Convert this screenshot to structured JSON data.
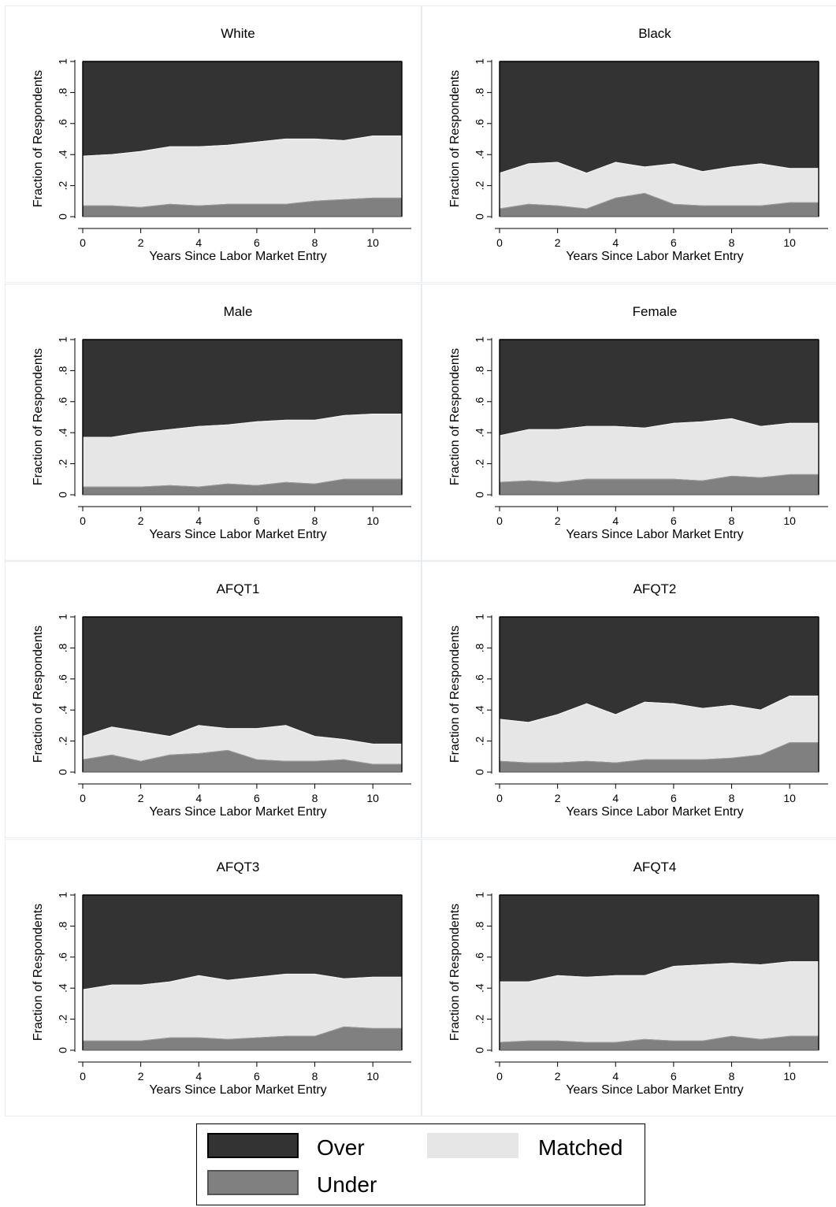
{
  "chart_data": [
    {
      "type": "area",
      "title": "White",
      "xlabel": "Years Since Labor Market Entry",
      "ylabel": "Fraction of Respondents",
      "x": [
        0,
        1,
        2,
        3,
        4,
        5,
        6,
        7,
        8,
        9,
        10,
        11
      ],
      "series": [
        {
          "name": "Under",
          "values": [
            0.07,
            0.07,
            0.06,
            0.08,
            0.07,
            0.08,
            0.08,
            0.08,
            0.1,
            0.11,
            0.12,
            0.12
          ]
        },
        {
          "name": "Matched",
          "values": [
            0.32,
            0.33,
            0.36,
            0.37,
            0.38,
            0.38,
            0.4,
            0.42,
            0.4,
            0.38,
            0.4,
            0.4
          ]
        },
        {
          "name": "Over",
          "values": [
            0.61,
            0.6,
            0.58,
            0.55,
            0.55,
            0.54,
            0.52,
            0.5,
            0.5,
            0.51,
            0.48,
            0.48
          ]
        }
      ]
    },
    {
      "type": "area",
      "title": "Black",
      "xlabel": "Years Since Labor Market Entry",
      "ylabel": "Fraction of Respondents",
      "x": [
        0,
        1,
        2,
        3,
        4,
        5,
        6,
        7,
        8,
        9,
        10,
        11
      ],
      "series": [
        {
          "name": "Under",
          "values": [
            0.05,
            0.08,
            0.07,
            0.05,
            0.12,
            0.15,
            0.08,
            0.07,
            0.07,
            0.07,
            0.09,
            0.09
          ]
        },
        {
          "name": "Matched",
          "values": [
            0.23,
            0.26,
            0.28,
            0.23,
            0.23,
            0.17,
            0.26,
            0.22,
            0.25,
            0.27,
            0.22,
            0.22
          ]
        },
        {
          "name": "Over",
          "values": [
            0.72,
            0.66,
            0.65,
            0.72,
            0.65,
            0.68,
            0.66,
            0.71,
            0.68,
            0.66,
            0.69,
            0.69
          ]
        }
      ]
    },
    {
      "type": "area",
      "title": "Male",
      "xlabel": "Years Since Labor Market Entry",
      "ylabel": "Fraction of Respondents",
      "x": [
        0,
        1,
        2,
        3,
        4,
        5,
        6,
        7,
        8,
        9,
        10,
        11
      ],
      "series": [
        {
          "name": "Under",
          "values": [
            0.05,
            0.05,
            0.05,
            0.06,
            0.05,
            0.07,
            0.06,
            0.08,
            0.07,
            0.1,
            0.1,
            0.1
          ]
        },
        {
          "name": "Matched",
          "values": [
            0.32,
            0.32,
            0.35,
            0.36,
            0.39,
            0.38,
            0.41,
            0.4,
            0.41,
            0.41,
            0.42,
            0.42
          ]
        },
        {
          "name": "Over",
          "values": [
            0.63,
            0.63,
            0.6,
            0.58,
            0.56,
            0.55,
            0.53,
            0.52,
            0.52,
            0.49,
            0.48,
            0.48
          ]
        }
      ]
    },
    {
      "type": "area",
      "title": "Female",
      "xlabel": "Years Since Labor Market Entry",
      "ylabel": "Fraction of Respondents",
      "x": [
        0,
        1,
        2,
        3,
        4,
        5,
        6,
        7,
        8,
        9,
        10,
        11
      ],
      "series": [
        {
          "name": "Under",
          "values": [
            0.08,
            0.09,
            0.08,
            0.1,
            0.1,
            0.1,
            0.1,
            0.09,
            0.12,
            0.11,
            0.13,
            0.13
          ]
        },
        {
          "name": "Matched",
          "values": [
            0.3,
            0.33,
            0.34,
            0.34,
            0.34,
            0.33,
            0.36,
            0.38,
            0.37,
            0.33,
            0.33,
            0.33
          ]
        },
        {
          "name": "Over",
          "values": [
            0.62,
            0.58,
            0.58,
            0.56,
            0.56,
            0.57,
            0.54,
            0.53,
            0.51,
            0.56,
            0.54,
            0.54
          ]
        }
      ]
    },
    {
      "type": "area",
      "title": "AFQT1",
      "xlabel": "Years Since Labor Market Entry",
      "ylabel": "Fraction of Respondents",
      "x": [
        0,
        1,
        2,
        3,
        4,
        5,
        6,
        7,
        8,
        9,
        10,
        11
      ],
      "series": [
        {
          "name": "Under",
          "values": [
            0.08,
            0.11,
            0.07,
            0.11,
            0.12,
            0.14,
            0.08,
            0.07,
            0.07,
            0.08,
            0.05,
            0.05
          ]
        },
        {
          "name": "Matched",
          "values": [
            0.15,
            0.18,
            0.19,
            0.12,
            0.18,
            0.14,
            0.2,
            0.23,
            0.16,
            0.13,
            0.13,
            0.13
          ]
        },
        {
          "name": "Over",
          "values": [
            0.77,
            0.71,
            0.74,
            0.77,
            0.7,
            0.72,
            0.72,
            0.7,
            0.77,
            0.79,
            0.82,
            0.82
          ]
        }
      ]
    },
    {
      "type": "area",
      "title": "AFQT2",
      "xlabel": "Years Since Labor Market Entry",
      "ylabel": "Fraction of Respondents",
      "x": [
        0,
        1,
        2,
        3,
        4,
        5,
        6,
        7,
        8,
        9,
        10,
        11
      ],
      "series": [
        {
          "name": "Under",
          "values": [
            0.07,
            0.06,
            0.06,
            0.07,
            0.06,
            0.08,
            0.08,
            0.08,
            0.09,
            0.11,
            0.19,
            0.19
          ]
        },
        {
          "name": "Matched",
          "values": [
            0.27,
            0.26,
            0.31,
            0.37,
            0.31,
            0.37,
            0.36,
            0.33,
            0.34,
            0.29,
            0.3,
            0.3
          ]
        },
        {
          "name": "Over",
          "values": [
            0.66,
            0.68,
            0.63,
            0.56,
            0.63,
            0.55,
            0.56,
            0.59,
            0.57,
            0.6,
            0.51,
            0.51
          ]
        }
      ]
    },
    {
      "type": "area",
      "title": "AFQT3",
      "xlabel": "Years Since Labor Market Entry",
      "ylabel": "Fraction of Respondents",
      "x": [
        0,
        1,
        2,
        3,
        4,
        5,
        6,
        7,
        8,
        9,
        10,
        11
      ],
      "series": [
        {
          "name": "Under",
          "values": [
            0.06,
            0.06,
            0.06,
            0.08,
            0.08,
            0.07,
            0.08,
            0.09,
            0.09,
            0.15,
            0.14,
            0.14
          ]
        },
        {
          "name": "Matched",
          "values": [
            0.33,
            0.36,
            0.36,
            0.36,
            0.4,
            0.38,
            0.39,
            0.4,
            0.4,
            0.31,
            0.33,
            0.33
          ]
        },
        {
          "name": "Over",
          "values": [
            0.61,
            0.58,
            0.58,
            0.56,
            0.52,
            0.55,
            0.53,
            0.51,
            0.51,
            0.54,
            0.53,
            0.53
          ]
        }
      ]
    },
    {
      "type": "area",
      "title": "AFQT4",
      "xlabel": "Years Since Labor Market Entry",
      "ylabel": "Fraction of Respondents",
      "x": [
        0,
        1,
        2,
        3,
        4,
        5,
        6,
        7,
        8,
        9,
        10,
        11
      ],
      "series": [
        {
          "name": "Under",
          "values": [
            0.05,
            0.06,
            0.06,
            0.05,
            0.05,
            0.07,
            0.06,
            0.06,
            0.09,
            0.07,
            0.09,
            0.09
          ]
        },
        {
          "name": "Matched",
          "values": [
            0.39,
            0.38,
            0.42,
            0.42,
            0.43,
            0.41,
            0.48,
            0.49,
            0.47,
            0.48,
            0.48,
            0.48
          ]
        },
        {
          "name": "Over",
          "values": [
            0.56,
            0.56,
            0.52,
            0.53,
            0.52,
            0.52,
            0.46,
            0.45,
            0.44,
            0.45,
            0.43,
            0.43
          ]
        }
      ]
    }
  ],
  "axis": {
    "xticks": [
      "0",
      "2",
      "4",
      "6",
      "8",
      "10"
    ],
    "yticks": [
      "0",
      ".2",
      ".4",
      ".6",
      ".8",
      "1"
    ]
  },
  "colors": {
    "Over": "#333333",
    "Matched": "#e6e6e6",
    "Under": "#808080",
    "outline": "#000000"
  },
  "legend": {
    "placement": "bottom",
    "items": [
      {
        "key": "Over",
        "label": "Over"
      },
      {
        "key": "Matched",
        "label": "Matched"
      },
      {
        "key": "Under",
        "label": "Under"
      }
    ]
  }
}
